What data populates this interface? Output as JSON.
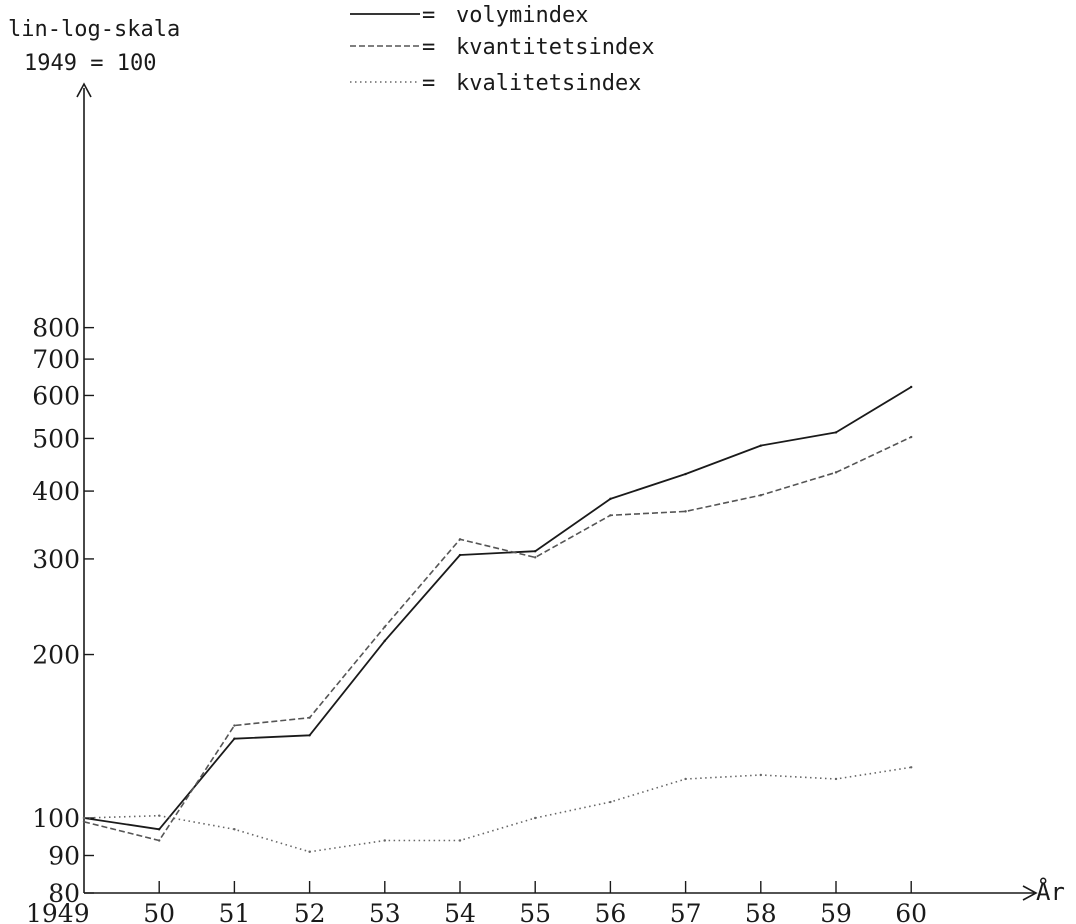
{
  "chart_data": {
    "type": "line",
    "scale_title": [
      "lin-log-skala",
      "1949 = 100"
    ],
    "xlabel": "År",
    "categories": [
      "1949",
      "50",
      "51",
      "52",
      "53",
      "54",
      "55",
      "56",
      "57",
      "58",
      "59",
      "60"
    ],
    "y_ticks": [
      80,
      90,
      100,
      200,
      300,
      400,
      500,
      600,
      700,
      800
    ],
    "y_tick_labels": [
      "80",
      "90",
      "100",
      "200",
      "300",
      "400",
      "500",
      "600",
      "700",
      "800"
    ],
    "ylim": [
      80,
      900
    ],
    "yscale": "lin-log",
    "grid": false,
    "legend_position": "top",
    "series": [
      {
        "name": "volymindex",
        "marker": "=",
        "style": "solid",
        "color": "#1a1a1a",
        "values": [
          100,
          97,
          140,
          142,
          212,
          305,
          310,
          387,
          430,
          485,
          513,
          622
        ]
      },
      {
        "name": "kvantitetsindex",
        "marker": "=",
        "style": "dashed",
        "color": "#555555",
        "values": [
          99,
          94,
          148,
          153,
          225,
          326,
          302,
          361,
          367,
          393,
          433,
          503
        ]
      },
      {
        "name": "kvalitetsindex",
        "marker": "=",
        "style": "dotted",
        "color": "#666666",
        "values": [
          100,
          101,
          97,
          91,
          94,
          94,
          100,
          107,
          118,
          120,
          118,
          124
        ]
      }
    ]
  }
}
